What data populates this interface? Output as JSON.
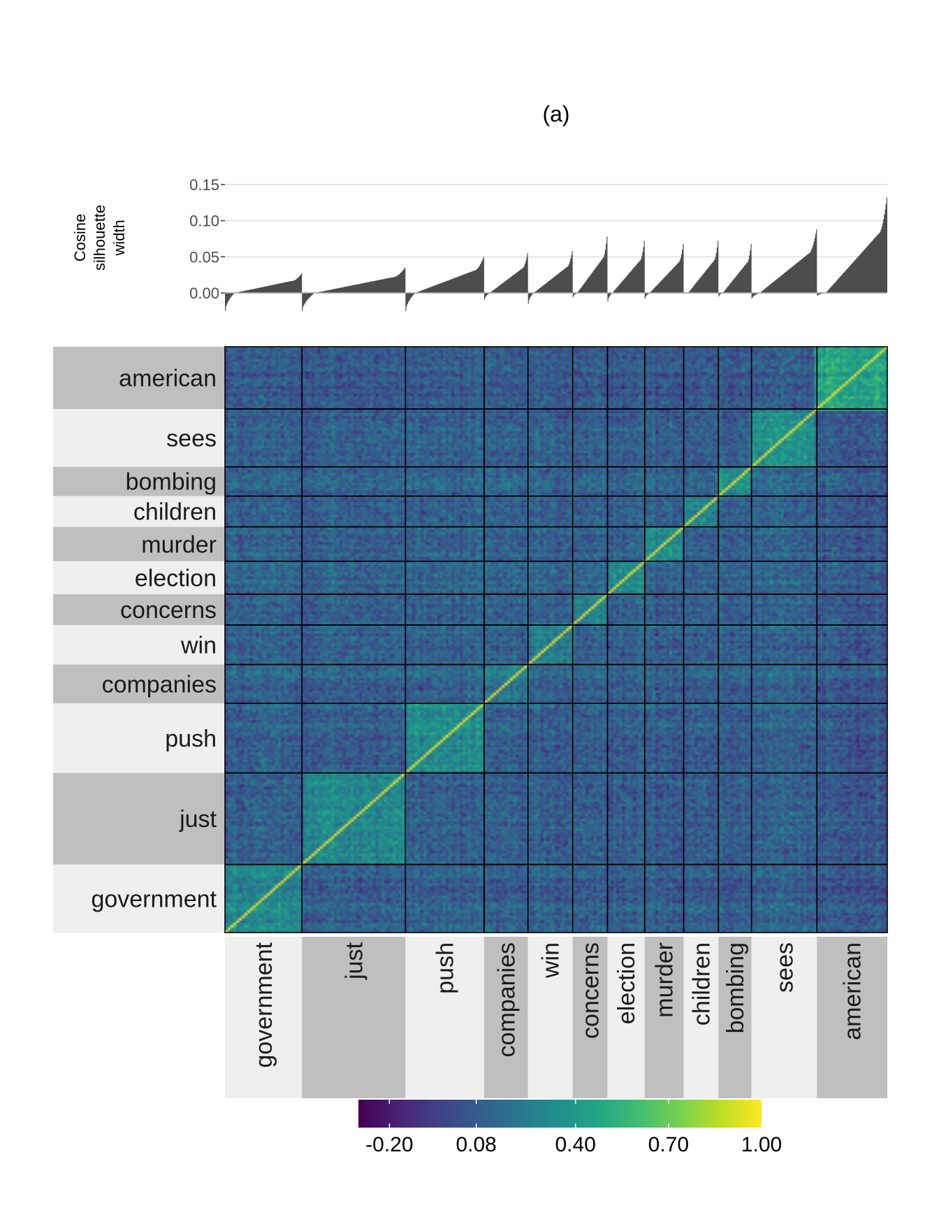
{
  "chart_data": {
    "type": "heatmap",
    "title": "(a)",
    "silhouette_panel": {
      "type": "bar",
      "ylabel": "Cosine silhouette width",
      "ylim": [
        -0.025,
        0.16
      ],
      "yticks": [
        "0.00",
        "0.05",
        "0.10",
        "0.15"
      ],
      "ytick_values": [
        0.0,
        0.05,
        0.1,
        0.15
      ],
      "grid": true,
      "clusters": [
        {
          "name": "government",
          "size": 93,
          "min": -0.025,
          "max": 0.027
        },
        {
          "name": "just",
          "size": 125,
          "min": -0.025,
          "max": 0.035
        },
        {
          "name": "push",
          "size": 95,
          "min": -0.025,
          "max": 0.05
        },
        {
          "name": "companies",
          "size": 53,
          "min": -0.01,
          "max": 0.055
        },
        {
          "name": "win",
          "size": 54,
          "min": -0.015,
          "max": 0.058
        },
        {
          "name": "concerns",
          "size": 42,
          "min": -0.006,
          "max": 0.078
        },
        {
          "name": "election",
          "size": 45,
          "min": -0.012,
          "max": 0.072
        },
        {
          "name": "murder",
          "size": 47,
          "min": -0.008,
          "max": 0.068
        },
        {
          "name": "children",
          "size": 42,
          "min": 0.0,
          "max": 0.072
        },
        {
          "name": "bombing",
          "size": 40,
          "min": -0.005,
          "max": 0.068
        },
        {
          "name": "sees",
          "size": 79,
          "min": -0.008,
          "max": 0.088
        },
        {
          "name": "american",
          "size": 85,
          "min": -0.004,
          "max": 0.132
        }
      ]
    },
    "heatmap_panel": {
      "row_labels_top_to_bottom": [
        "american",
        "sees",
        "bombing",
        "children",
        "murder",
        "election",
        "concerns",
        "win",
        "companies",
        "push",
        "just",
        "government"
      ],
      "column_labels_left_to_right": [
        "government",
        "just",
        "push",
        "companies",
        "win",
        "concerns",
        "election",
        "murder",
        "children",
        "bombing",
        "sees",
        "american"
      ],
      "within_cluster_mean_similarity": {
        "government": 0.3,
        "just": 0.32,
        "push": 0.33,
        "companies": 0.22,
        "win": 0.26,
        "concerns": 0.27,
        "election": 0.3,
        "murder": 0.33,
        "children": 0.3,
        "bombing": 0.32,
        "sees": 0.35,
        "american": 0.45
      },
      "between_cluster_mean_similarity": 0.1
    },
    "colorbar": {
      "colormap": "viridis",
      "range": [
        -0.3,
        1.0
      ],
      "tick_labels": [
        "-0.20",
        "0.08",
        "0.40",
        "0.70",
        "1.00"
      ],
      "tick_values": [
        -0.2,
        0.08,
        0.4,
        0.7,
        1.0
      ],
      "placement": "bottom"
    },
    "colors": {
      "bars": "#4d4d4d",
      "grid": "#e5e5e5",
      "label_bg_dark": "#bfbfbf",
      "label_bg_light": "#efefef",
      "block_border": "#000000"
    }
  }
}
